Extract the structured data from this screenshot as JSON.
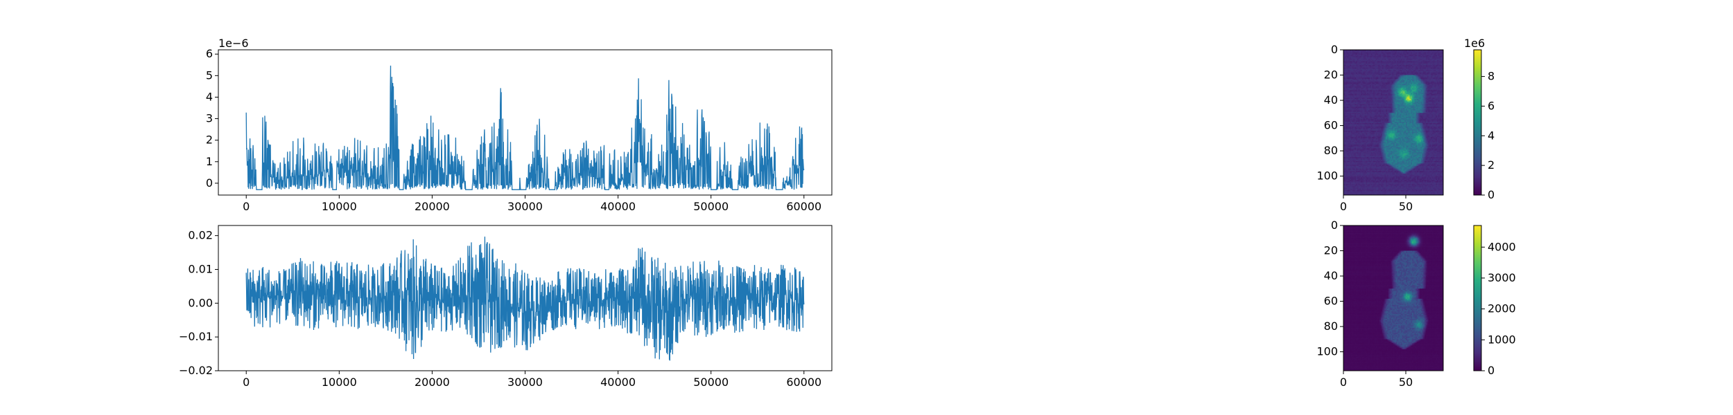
{
  "chart_data": [
    {
      "type": "line",
      "title": "",
      "xlabel": "",
      "ylabel": "",
      "offset_label": "1e−6",
      "xlim": [
        -3000,
        63000
      ],
      "ylim": [
        -0.55,
        6.2
      ],
      "xticks": [
        0,
        10000,
        20000,
        30000,
        40000,
        50000,
        60000
      ],
      "yticks": [
        0,
        1,
        2,
        3,
        4,
        5,
        6
      ],
      "xtick_labels": [
        "0",
        "10000",
        "20000",
        "30000",
        "40000",
        "50000",
        "60000"
      ],
      "ytick_labels": [
        "0",
        "1",
        "2",
        "3",
        "4",
        "5",
        "6"
      ],
      "color": "#1f77b4",
      "baseline": -0.3,
      "x_range": [
        0,
        60000
      ],
      "envelope": [
        [
          0,
          3.6
        ],
        [
          1000,
          1.5
        ],
        [
          2000,
          3.8
        ],
        [
          3000,
          1.0
        ],
        [
          4000,
          1.5
        ],
        [
          5000,
          2.0
        ],
        [
          6000,
          2.3
        ],
        [
          7000,
          1.5
        ],
        [
          8000,
          2.4
        ],
        [
          9000,
          1.3
        ],
        [
          10000,
          1.6
        ],
        [
          11000,
          2.0
        ],
        [
          12000,
          2.4
        ],
        [
          13000,
          1.8
        ],
        [
          14000,
          1.6
        ],
        [
          15000,
          3.0
        ],
        [
          15500,
          5.6
        ],
        [
          16200,
          3.9
        ],
        [
          17000,
          0.9
        ],
        [
          18000,
          2.1
        ],
        [
          19000,
          2.6
        ],
        [
          20000,
          3.5
        ],
        [
          21000,
          2.3
        ],
        [
          22000,
          2.5
        ],
        [
          23000,
          1.8
        ],
        [
          24000,
          0.5
        ],
        [
          25000,
          1.8
        ],
        [
          26000,
          3.4
        ],
        [
          27000,
          2.8
        ],
        [
          27500,
          5.2
        ],
        [
          28500,
          1.8
        ],
        [
          29500,
          0.2
        ],
        [
          30500,
          1.0
        ],
        [
          31500,
          3.3
        ],
        [
          32500,
          1.8
        ],
        [
          33500,
          0.8
        ],
        [
          34500,
          1.9
        ],
        [
          35500,
          1.4
        ],
        [
          36500,
          2.1
        ],
        [
          37500,
          1.5
        ],
        [
          38500,
          2.0
        ],
        [
          39500,
          1.7
        ],
        [
          40500,
          1.3
        ],
        [
          41500,
          2.9
        ],
        [
          42300,
          5.2
        ],
        [
          43000,
          2.0
        ],
        [
          44000,
          2.8
        ],
        [
          45000,
          1.4
        ],
        [
          45500,
          5.8
        ],
        [
          46500,
          2.7
        ],
        [
          47500,
          3.1
        ],
        [
          48500,
          4.6
        ],
        [
          49500,
          3.1
        ],
        [
          50500,
          1.2
        ],
        [
          51500,
          2.3
        ],
        [
          52500,
          0.6
        ],
        [
          53500,
          1.6
        ],
        [
          54500,
          2.2
        ],
        [
          55500,
          3.1
        ],
        [
          56500,
          2.6
        ],
        [
          57500,
          0.2
        ],
        [
          58500,
          1.2
        ],
        [
          59500,
          3.2
        ],
        [
          60000,
          3.1
        ]
      ],
      "gaps": [
        [
          1100,
          1700
        ],
        [
          9300,
          9700
        ],
        [
          16500,
          16900
        ],
        [
          23600,
          24300
        ],
        [
          28600,
          29400
        ],
        [
          29500,
          30100
        ],
        [
          32600,
          33200
        ],
        [
          38600,
          39000
        ],
        [
          50000,
          50600
        ],
        [
          52300,
          52900
        ],
        [
          57000,
          57700
        ]
      ]
    },
    {
      "type": "line",
      "title": "",
      "xlabel": "",
      "ylabel": "",
      "xlim": [
        -3000,
        63000
      ],
      "ylim": [
        -0.02,
        0.023
      ],
      "xticks": [
        0,
        10000,
        20000,
        30000,
        40000,
        50000,
        60000
      ],
      "yticks": [
        -0.02,
        -0.01,
        0.0,
        0.01,
        0.02
      ],
      "xtick_labels": [
        "0",
        "10000",
        "20000",
        "30000",
        "40000",
        "50000",
        "60000"
      ],
      "ytick_labels": [
        "−0.02",
        "−0.01",
        "0.00",
        "0.01",
        "0.02"
      ],
      "color": "#1f77b4",
      "x_range": [
        0,
        60000
      ],
      "upper_envelope": [
        [
          0,
          0.011
        ],
        [
          2000,
          0.012
        ],
        [
          4000,
          0.01
        ],
        [
          6000,
          0.014
        ],
        [
          8000,
          0.012
        ],
        [
          10000,
          0.013
        ],
        [
          12000,
          0.012
        ],
        [
          14000,
          0.011
        ],
        [
          16000,
          0.014
        ],
        [
          18000,
          0.019
        ],
        [
          20000,
          0.012
        ],
        [
          22000,
          0.01
        ],
        [
          24000,
          0.018
        ],
        [
          25500,
          0.021
        ],
        [
          27000,
          0.014
        ],
        [
          29000,
          0.012
        ],
        [
          31000,
          0.008
        ],
        [
          33000,
          0.009
        ],
        [
          35000,
          0.011
        ],
        [
          37000,
          0.01
        ],
        [
          39000,
          0.011
        ],
        [
          41000,
          0.01
        ],
        [
          42500,
          0.018
        ],
        [
          44000,
          0.014
        ],
        [
          46000,
          0.011
        ],
        [
          48000,
          0.013
        ],
        [
          50000,
          0.014
        ],
        [
          52000,
          0.011
        ],
        [
          54000,
          0.012
        ],
        [
          56000,
          0.011
        ],
        [
          58000,
          0.012
        ],
        [
          60000,
          0.01
        ]
      ],
      "lower_envelope": [
        [
          0,
          -0.007
        ],
        [
          2000,
          -0.008
        ],
        [
          4000,
          -0.006
        ],
        [
          6000,
          -0.008
        ],
        [
          8000,
          -0.008
        ],
        [
          10000,
          -0.007
        ],
        [
          12000,
          -0.009
        ],
        [
          14000,
          -0.007
        ],
        [
          16000,
          -0.009
        ],
        [
          18000,
          -0.018
        ],
        [
          20000,
          -0.01
        ],
        [
          22000,
          -0.008
        ],
        [
          24000,
          -0.012
        ],
        [
          26000,
          -0.016
        ],
        [
          28000,
          -0.012
        ],
        [
          30000,
          -0.015
        ],
        [
          32000,
          -0.01
        ],
        [
          34000,
          -0.007
        ],
        [
          36000,
          -0.008
        ],
        [
          38000,
          -0.008
        ],
        [
          40000,
          -0.007
        ],
        [
          42000,
          -0.011
        ],
        [
          44000,
          -0.017
        ],
        [
          45500,
          -0.018
        ],
        [
          47000,
          -0.009
        ],
        [
          49000,
          -0.011
        ],
        [
          51000,
          -0.008
        ],
        [
          53000,
          -0.009
        ],
        [
          55000,
          -0.009
        ],
        [
          57000,
          -0.007
        ],
        [
          59000,
          -0.009
        ],
        [
          60000,
          -0.008
        ]
      ]
    },
    {
      "type": "heatmap",
      "title": "",
      "colormap": "viridis",
      "colorbar_offset_label": "1e6",
      "vmin": 0,
      "vmax": 9.8,
      "xlim": [
        0,
        80
      ],
      "ylim": [
        115,
        0
      ],
      "xticks": [
        0,
        50
      ],
      "yticks": [
        0,
        20,
        40,
        60,
        80,
        100
      ],
      "xtick_labels": [
        "0",
        "50"
      ],
      "ytick_labels": [
        "0",
        "20",
        "40",
        "60",
        "80",
        "100"
      ],
      "colorbar_ticks": [
        0,
        2,
        4,
        6,
        8
      ],
      "colorbar_tick_labels": [
        "0",
        "2",
        "4",
        "6",
        "8"
      ],
      "background_level": 1.2,
      "body_level": 3.8,
      "hotspots": [
        [
          52,
          38,
          9.0
        ],
        [
          47,
          33,
          7.5
        ],
        [
          38,
          67,
          6.5
        ],
        [
          48,
          82,
          6.0
        ],
        [
          60,
          70,
          6.5
        ],
        [
          56,
          30,
          6.0
        ]
      ]
    },
    {
      "type": "heatmap",
      "title": "",
      "colormap": "viridis",
      "vmin": 0,
      "vmax": 4700,
      "xlim": [
        0,
        80
      ],
      "ylim": [
        115,
        0
      ],
      "xticks": [
        0,
        50
      ],
      "yticks": [
        0,
        20,
        40,
        60,
        80,
        100
      ],
      "xtick_labels": [
        "0",
        "50"
      ],
      "ytick_labels": [
        "0",
        "20",
        "40",
        "60",
        "80",
        "100"
      ],
      "colorbar_ticks": [
        0,
        1000,
        2000,
        3000,
        4000
      ],
      "colorbar_tick_labels": [
        "0",
        "1000",
        "2000",
        "3000",
        "4000"
      ],
      "background_level": 100,
      "body_level": 1100,
      "hotspots": [
        [
          56,
          12,
          4300
        ],
        [
          51,
          56,
          3000
        ],
        [
          60,
          78,
          2300
        ]
      ]
    }
  ]
}
